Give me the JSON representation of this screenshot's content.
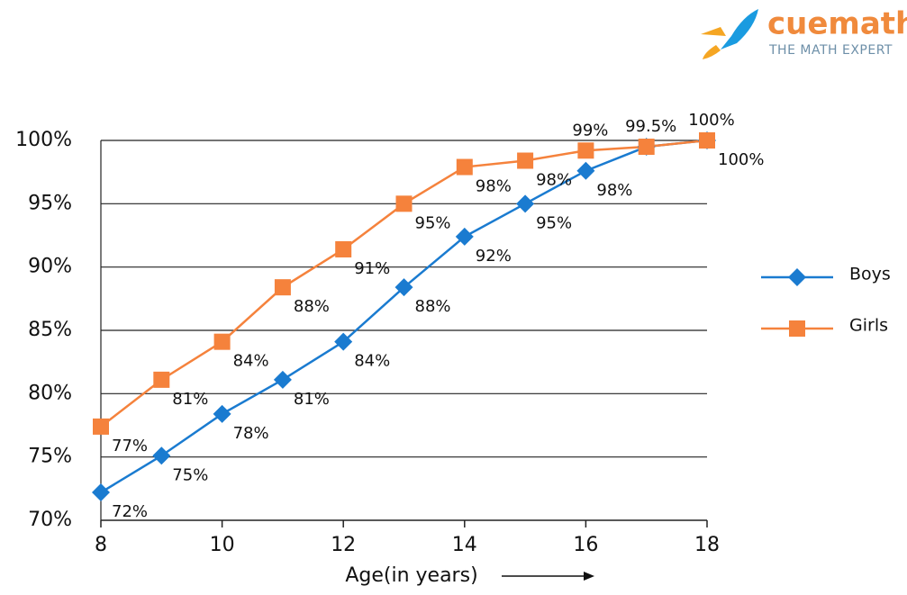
{
  "logo": {
    "name": "cuemath",
    "tagline": "THE MATH EXPERT"
  },
  "chart_data": {
    "type": "line",
    "x_label": "Age(in years)",
    "x": [
      8,
      9,
      10,
      11,
      12,
      13,
      14,
      15,
      16,
      17,
      18
    ],
    "xlim": [
      8,
      18
    ],
    "xticks": [
      8,
      10,
      12,
      14,
      16,
      18
    ],
    "ylim": [
      70,
      100
    ],
    "yticks": [
      {
        "value": 70,
        "label": "70%"
      },
      {
        "value": 75,
        "label": "75%"
      },
      {
        "value": 80,
        "label": "80%"
      },
      {
        "value": 85,
        "label": "85%"
      },
      {
        "value": 90,
        "label": "90%"
      },
      {
        "value": 95,
        "label": "95%"
      },
      {
        "value": 100,
        "label": "100%"
      }
    ],
    "grid": true,
    "legend": "right",
    "series": [
      {
        "name": "Boys",
        "color": "#1a7bd0",
        "marker": "diamond",
        "values": [
          72.2,
          75.1,
          78.4,
          81.1,
          84.1,
          88.4,
          92.4,
          95.0,
          97.6,
          99.5,
          100
        ],
        "value_labels": [
          "72%",
          "75%",
          "78%",
          "81%",
          "84%",
          "88%",
          "92%",
          "95%",
          "98%",
          null,
          "100%"
        ]
      },
      {
        "name": "Girls",
        "color": "#f5823c",
        "marker": "square",
        "values": [
          77.4,
          81.1,
          84.1,
          88.4,
          91.4,
          95.0,
          97.9,
          98.4,
          99.2,
          99.5,
          100
        ],
        "value_labels": [
          "77%",
          "81%",
          "84%",
          "88%",
          "91%",
          "95%",
          "98%",
          "98%",
          "99%",
          "99.5%",
          "100%"
        ]
      }
    ]
  }
}
